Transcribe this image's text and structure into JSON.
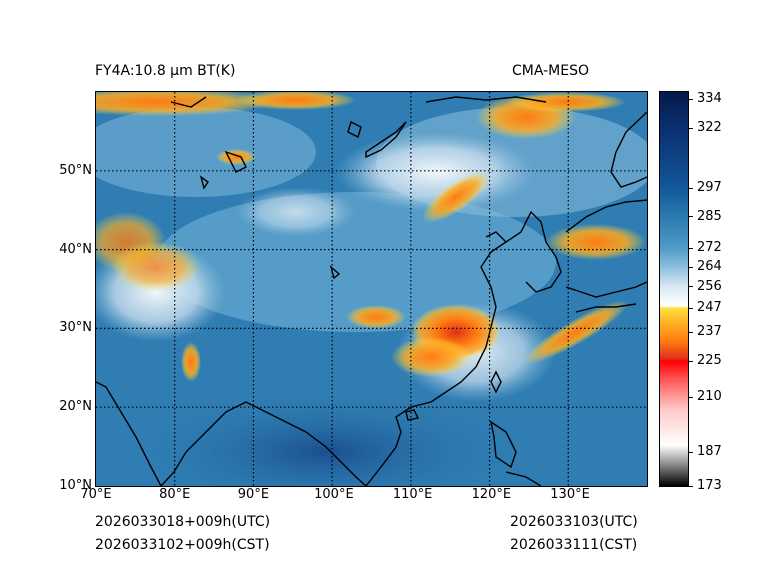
{
  "header": {
    "left_title": "FY4A:10.8 µm BT(K)",
    "right_title": "CMA-MESO"
  },
  "footer": {
    "left_line1": "2026033018+009h(UTC)",
    "left_line2": "2026033102+009h(CST)",
    "right_line1": "2026033103(UTC)",
    "right_line2": "2026033111(CST)"
  },
  "map": {
    "lon_range": [
      70,
      140
    ],
    "lat_range": [
      10,
      60
    ],
    "lon_labels": [
      {
        "value": 70,
        "label": "70°E"
      },
      {
        "value": 80,
        "label": "80°E"
      },
      {
        "value": 90,
        "label": "90°E"
      },
      {
        "value": 100,
        "label": "100°E"
      },
      {
        "value": 110,
        "label": "110°E"
      },
      {
        "value": 120,
        "label": "120°E"
      },
      {
        "value": 130,
        "label": "130°E"
      }
    ],
    "lat_labels": [
      {
        "value": 10,
        "label": "10°N"
      },
      {
        "value": 20,
        "label": "20°N"
      },
      {
        "value": 30,
        "label": "30°N"
      },
      {
        "value": 40,
        "label": "40°N"
      },
      {
        "value": 50,
        "label": "50°N"
      }
    ],
    "gridlines": "dotted",
    "background_color": "#2f7db3"
  },
  "colorbar": {
    "min": 173,
    "max": 337,
    "ticks": [
      {
        "value": 334,
        "label": "334"
      },
      {
        "value": 322,
        "label": "322"
      },
      {
        "value": 297,
        "label": "297"
      },
      {
        "value": 285,
        "label": "285"
      },
      {
        "value": 272,
        "label": "272"
      },
      {
        "value": 264,
        "label": "264"
      },
      {
        "value": 256,
        "label": "256"
      },
      {
        "value": 247,
        "label": "247"
      },
      {
        "value": 237,
        "label": "237"
      },
      {
        "value": 225,
        "label": "225"
      },
      {
        "value": 210,
        "label": "210"
      },
      {
        "value": 187,
        "label": "187"
      },
      {
        "value": 173,
        "label": "173"
      }
    ],
    "stops": [
      {
        "value": 173,
        "color": "#000000"
      },
      {
        "value": 183,
        "color": "#9a9a9a"
      },
      {
        "value": 190,
        "color": "#ffffff"
      },
      {
        "value": 205,
        "color": "#ffc8c8"
      },
      {
        "value": 218,
        "color": "#ff5050"
      },
      {
        "value": 225,
        "color": "#ff0000"
      },
      {
        "value": 226,
        "color": "#e0301a"
      },
      {
        "value": 233,
        "color": "#ff7a10"
      },
      {
        "value": 240,
        "color": "#ffaa20"
      },
      {
        "value": 247,
        "color": "#ffe040"
      },
      {
        "value": 248,
        "color": "#ffffff"
      },
      {
        "value": 256,
        "color": "#d8e8f2"
      },
      {
        "value": 264,
        "color": "#8cc0dc"
      },
      {
        "value": 272,
        "color": "#4f9cc8"
      },
      {
        "value": 285,
        "color": "#2a7ab0"
      },
      {
        "value": 297,
        "color": "#12589a"
      },
      {
        "value": 322,
        "color": "#0a2f70"
      },
      {
        "value": 337,
        "color": "#041a4a"
      }
    ]
  }
}
